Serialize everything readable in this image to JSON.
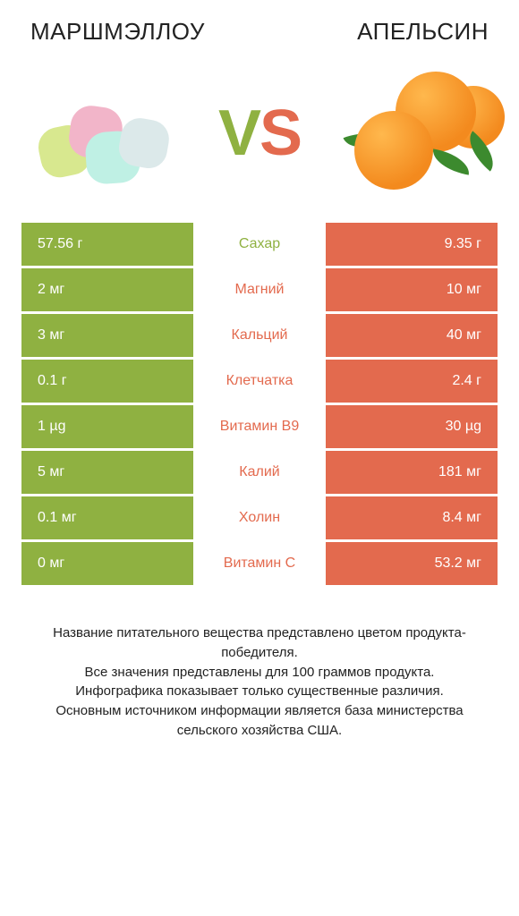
{
  "colors": {
    "left": "#8fb141",
    "right": "#e36a4e",
    "left_text": "#ffffff",
    "right_text": "#ffffff",
    "mid_text_left": "#8fb141",
    "mid_text_right": "#e36a4e"
  },
  "titles": {
    "left": "МАРШМЭЛЛОУ",
    "right": "АПЕЛЬСИН"
  },
  "vs": {
    "v": "V",
    "s": "S"
  },
  "rows": [
    {
      "left": "57.56 г",
      "label": "Сахар",
      "right": "9.35 г",
      "winner": "left"
    },
    {
      "left": "2 мг",
      "label": "Магний",
      "right": "10 мг",
      "winner": "right"
    },
    {
      "left": "3 мг",
      "label": "Кальций",
      "right": "40 мг",
      "winner": "right"
    },
    {
      "left": "0.1 г",
      "label": "Клетчатка",
      "right": "2.4 г",
      "winner": "right"
    },
    {
      "left": "1 µg",
      "label": "Витамин B9",
      "right": "30 µg",
      "winner": "right"
    },
    {
      "left": "5 мг",
      "label": "Калий",
      "right": "181 мг",
      "winner": "right"
    },
    {
      "left": "0.1 мг",
      "label": "Холин",
      "right": "8.4 мг",
      "winner": "right"
    },
    {
      "left": "0 мг",
      "label": "Витамин C",
      "right": "53.2 мг",
      "winner": "right"
    }
  ],
  "footer": [
    "Название питательного вещества представлено цветом продукта-победителя.",
    "Все значения представлены для 100 граммов продукта.",
    "Инфографика показывает только существенные различия.",
    "Основным источником информации является база министерства сельского хозяйства США."
  ]
}
